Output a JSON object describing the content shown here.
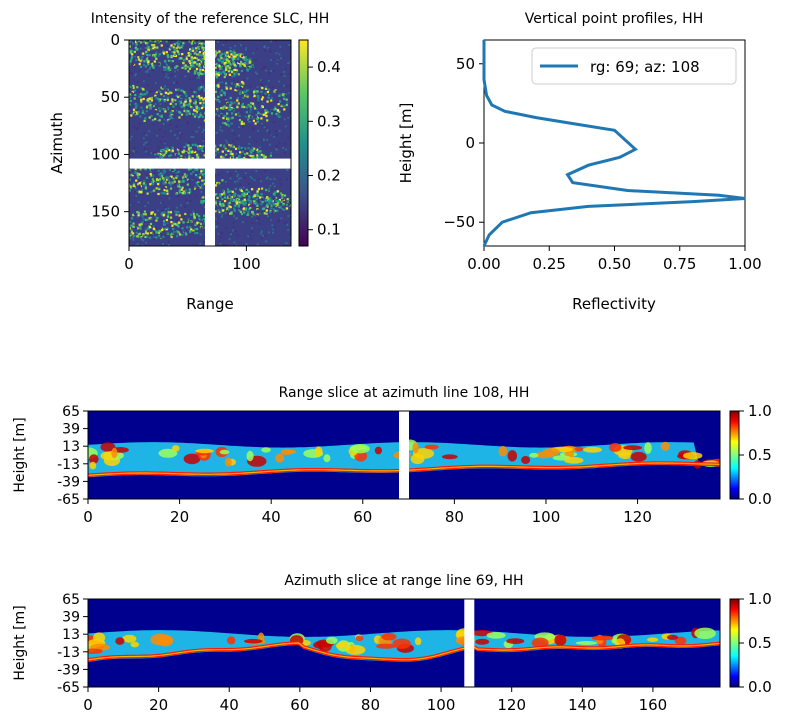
{
  "chart_data": [
    {
      "type": "heatmap",
      "title": "Intensity of the reference SLC, HH",
      "xlabel": "Range",
      "ylabel": "Azimuth",
      "xlim": [
        0,
        138
      ],
      "ylim": [
        180,
        0
      ],
      "xticks": [
        "0",
        "100"
      ],
      "yticks": [
        "0",
        "50",
        "100",
        "150"
      ],
      "colorbar": {
        "ticks": [
          "0.1",
          "0.2",
          "0.3",
          "0.4"
        ],
        "range": [
          0.07,
          0.45
        ],
        "colormap": "viridis"
      },
      "crosshair": {
        "range": 69,
        "azimuth": 108
      }
    },
    {
      "type": "line",
      "title": "Vertical point profiles, HH",
      "xlabel": "Reflectivity",
      "ylabel": "Height [m]",
      "xlim": [
        0,
        1
      ],
      "ylim": [
        -65,
        65
      ],
      "xticks": [
        "0.00",
        "0.25",
        "0.50",
        "0.75",
        "1.00"
      ],
      "yticks": [
        "50",
        "0",
        "−50"
      ],
      "legend_position": "top-right",
      "series": [
        {
          "name": "rg: 69; az: 108",
          "color": "#1f77b4",
          "x": [
            0.0,
            0.0,
            0.0,
            0.01,
            0.03,
            0.08,
            0.2,
            0.35,
            0.5,
            0.58,
            0.52,
            0.4,
            0.32,
            0.34,
            0.55,
            0.9,
            1.0,
            0.8,
            0.4,
            0.18,
            0.07,
            0.02,
            0.0
          ],
          "y": [
            65,
            50,
            40,
            30,
            24,
            20,
            16,
            12,
            8,
            -4,
            -9,
            -14,
            -20,
            -25,
            -30,
            -33,
            -35,
            -37,
            -40,
            -44,
            -50,
            -58,
            -65
          ]
        }
      ]
    },
    {
      "type": "heatmap",
      "title": "Range slice at azimuth line 108, HH",
      "ylabel": "Height [m]",
      "xlim": [
        0,
        138
      ],
      "ylim": [
        -65,
        65
      ],
      "xticks": [
        "0",
        "20",
        "40",
        "60",
        "80",
        "100",
        "120"
      ],
      "yticks": [
        "65",
        "39",
        "13",
        "-13",
        "-39",
        "-65"
      ],
      "colorbar": {
        "ticks": [
          "0.0",
          "0.5",
          "1.0"
        ],
        "range": [
          0,
          1
        ],
        "colormap": "jet"
      },
      "marker_line": 69
    },
    {
      "type": "heatmap",
      "title": "Azimuth slice at range line 69, HH",
      "ylabel": "Height [m]",
      "xlim": [
        0,
        179
      ],
      "ylim": [
        -65,
        65
      ],
      "xticks": [
        "0",
        "20",
        "40",
        "60",
        "80",
        "100",
        "120",
        "140",
        "160"
      ],
      "yticks": [
        "65",
        "39",
        "13",
        "-13",
        "-39",
        "-65"
      ],
      "colorbar": {
        "ticks": [
          "0.0",
          "0.5",
          "1.0"
        ],
        "range": [
          0,
          1
        ],
        "colormap": "jet"
      },
      "marker_line": 108
    }
  ]
}
